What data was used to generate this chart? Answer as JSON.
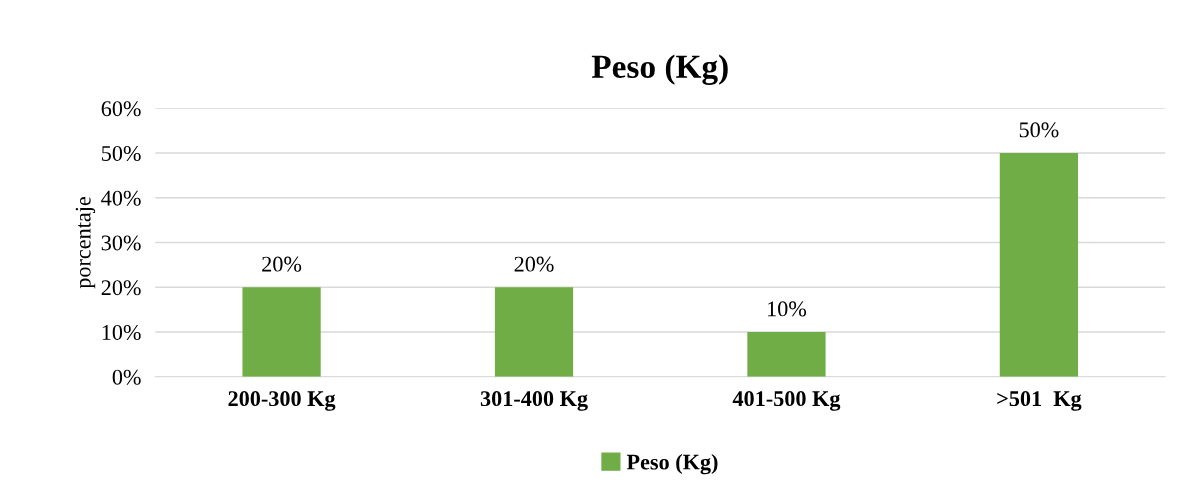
{
  "chart_data": {
    "type": "bar",
    "title": "Peso (Kg)",
    "ylabel": "porcentaje",
    "categories": [
      "200-300 Kg",
      "301-400 Kg",
      "401-500 Kg",
      ">501  Kg"
    ],
    "series": [
      {
        "name": "Peso (Kg)",
        "color": "#70ad47",
        "values": [
          20,
          20,
          10,
          50
        ],
        "value_labels": [
          "20%",
          "20%",
          "10%",
          "50%"
        ]
      }
    ],
    "ylim": [
      0,
      60
    ],
    "yticks": [
      {
        "value": 0,
        "label": "0%"
      },
      {
        "value": 10,
        "label": "10%"
      },
      {
        "value": 20,
        "label": "20%"
      },
      {
        "value": 30,
        "label": "30%"
      },
      {
        "value": 40,
        "label": "40%"
      },
      {
        "value": 50,
        "label": "50%"
      },
      {
        "value": 60,
        "label": "60%"
      }
    ],
    "grid": "y",
    "legend": "bottom"
  }
}
